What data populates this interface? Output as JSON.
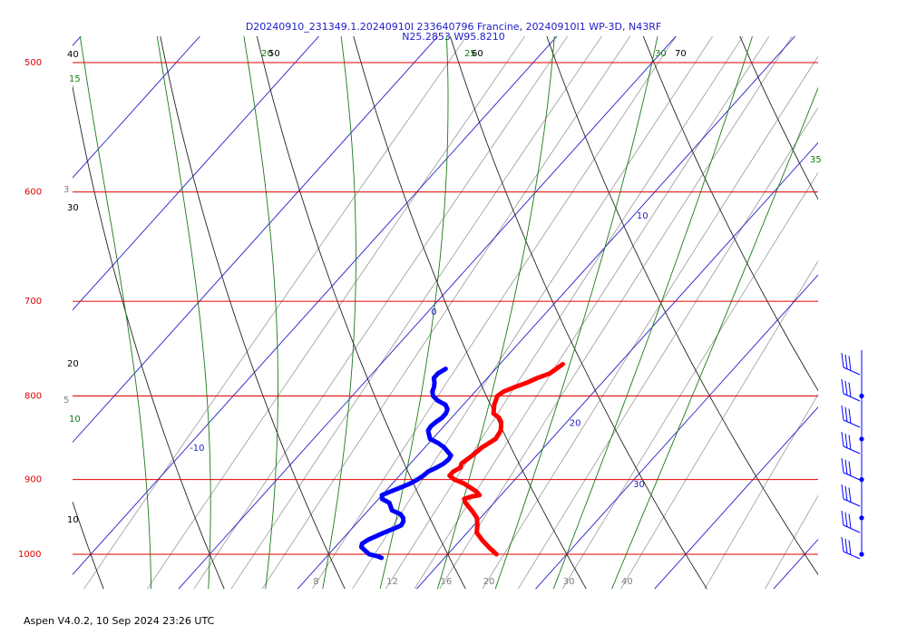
{
  "header": {
    "line1": "D20240910_231349.1.20240910I 233640796 Francine, 20240910I1 WP-3D, N43RF",
    "line2": "N25.2853 W95.8210"
  },
  "footer": "Aspen V4.0.2, 10 Sep 2024  23:26 UTC",
  "colors": {
    "isobar": "#e00000",
    "isotherm": "#2020c8",
    "dry_adiabat": "#222222",
    "moist_adiabat": "#1a7a1a",
    "mixing_ratio": "#9a9a9a",
    "temperature_trace": "#ff0000",
    "dewpoint_trace": "#0000ff",
    "wind_barb": "#0000ff"
  },
  "chart_data": {
    "type": "line",
    "title": "",
    "pressure_labels": [
      "500",
      "600",
      "700",
      "800",
      "900",
      "1000"
    ],
    "isotherm_labels": [
      "-10",
      "0",
      "10",
      "20",
      "30"
    ],
    "mixing_ratio_labels": [
      "8",
      "12",
      "16",
      "20",
      "30",
      "40"
    ],
    "moist_adiabat_labels": [
      "15",
      "10",
      "20",
      "25",
      "30",
      "35"
    ],
    "dry_adiabat_labels": [
      "40",
      "30",
      "20",
      "10",
      "50",
      "60",
      "70"
    ],
    "edge_labels": [
      "3",
      "5"
    ],
    "ylim_hpa": [
      1040,
      500
    ],
    "series": [
      {
        "id": "temperature",
        "pressure": [
          1000,
          990,
          980,
          970,
          960,
          950,
          940,
          930,
          925,
          922,
          920,
          915,
          905,
          900,
          895,
          890,
          885,
          880,
          870,
          860,
          850,
          840,
          830,
          825,
          820,
          810,
          800,
          795,
          790,
          785,
          780,
          775,
          770,
          765
        ],
        "values": [
          24.1,
          22.9,
          21.8,
          20.8,
          20.3,
          19.7,
          18.7,
          17.6,
          17.2,
          17.6,
          18.2,
          17.6,
          16.0,
          14.9,
          14.2,
          14.2,
          14.5,
          14.3,
          14.6,
          14.8,
          15.3,
          15.1,
          14.5,
          14.0,
          13.2,
          12.6,
          12.2,
          12.4,
          13.0,
          13.7,
          14.2,
          14.9,
          15.1,
          15.3
        ]
      },
      {
        "id": "dewpoint",
        "pressure": [
          1005,
          1003,
          1000,
          995,
          990,
          985,
          980,
          975,
          970,
          965,
          960,
          955,
          950,
          945,
          940,
          935,
          930,
          925,
          920,
          915,
          910,
          905,
          900,
          895,
          890,
          885,
          880,
          875,
          870,
          865,
          860,
          855,
          850,
          845,
          840,
          835,
          830,
          825,
          820,
          815,
          810,
          805,
          800,
          795,
          790,
          785,
          780,
          775,
          770
        ],
        "values": [
          14.7,
          14.3,
          13.4,
          12.8,
          12.2,
          12.0,
          12.2,
          12.6,
          13.0,
          13.5,
          13.9,
          13.8,
          13.5,
          13.0,
          12.0,
          11.6,
          11.2,
          10.3,
          10.0,
          10.5,
          11.0,
          11.5,
          11.8,
          12.0,
          12.1,
          12.5,
          12.8,
          12.9,
          12.8,
          12.2,
          11.6,
          10.8,
          9.8,
          9.4,
          9.0,
          8.9,
          9.0,
          9.2,
          9.2,
          9.0,
          8.5,
          7.5,
          6.8,
          6.4,
          6.2,
          5.9,
          5.5,
          5.5,
          5.8
        ]
      }
    ],
    "wind_barbs": {
      "pressure": [
        1000,
        975,
        950,
        925,
        900,
        875,
        850,
        825,
        800,
        775,
        750
      ]
    }
  }
}
